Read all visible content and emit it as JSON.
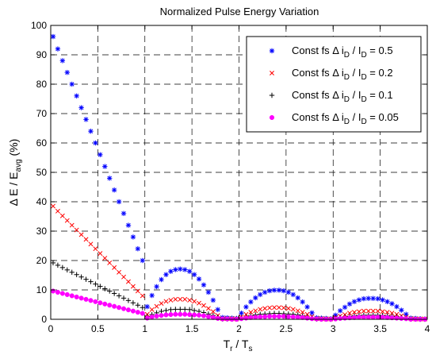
{
  "chart_data": {
    "type": "scatter",
    "title": "Normalized Pulse Energy Variation",
    "xlabel": {
      "base": "T",
      "sub": "r",
      "mid": " / T",
      "sub2": "s"
    },
    "ylabel": {
      "base": "Δ E / E",
      "sub": "avg",
      "tail": " (%)"
    },
    "xlim": [
      0,
      4
    ],
    "ylim": [
      0,
      100
    ],
    "xticks": [
      "0",
      "0.5",
      "1",
      "1.5",
      "2",
      "2.5",
      "3",
      "3.5",
      "4"
    ],
    "yticks": [
      "0",
      "10",
      "20",
      "30",
      "40",
      "50",
      "60",
      "70",
      "80",
      "90",
      "100"
    ],
    "grid": true,
    "legend_position": "top-right",
    "x": [
      0.025,
      0.075,
      0.125,
      0.175,
      0.225,
      0.275,
      0.325,
      0.375,
      0.425,
      0.475,
      0.525,
      0.575,
      0.625,
      0.675,
      0.725,
      0.775,
      0.825,
      0.875,
      0.925,
      0.975,
      1.025,
      1.075,
      1.125,
      1.175,
      1.225,
      1.275,
      1.325,
      1.375,
      1.425,
      1.475,
      1.525,
      1.575,
      1.625,
      1.675,
      1.725,
      1.775,
      1.825,
      1.875,
      1.925,
      1.975,
      2.025,
      2.075,
      2.125,
      2.175,
      2.225,
      2.275,
      2.325,
      2.375,
      2.425,
      2.475,
      2.525,
      2.575,
      2.625,
      2.675,
      2.725,
      2.775,
      2.825,
      2.875,
      2.925,
      2.975,
      3.025,
      3.075,
      3.125,
      3.175,
      3.225,
      3.275,
      3.325,
      3.375,
      3.425,
      3.475,
      3.525,
      3.575,
      3.625,
      3.675,
      3.725,
      3.775,
      3.825,
      3.875,
      3.925,
      3.975
    ],
    "series": [
      {
        "name": "Const fs Δ i_D / I_D = 0.5",
        "legend": {
          "pre": "Const fs Δ i",
          "sub": "D",
          "mid": " / I",
          "sub2": "D",
          "post": " = 0.5"
        },
        "marker": "asterisk",
        "color": "#0000ff",
        "values": [
          96.2,
          92,
          88,
          84,
          80,
          76,
          72,
          68,
          64,
          60,
          56,
          52,
          48,
          44,
          40,
          36,
          32,
          28,
          24,
          20,
          4.3,
          8.1,
          11.1,
          13.5,
          15.2,
          16.3,
          16.9,
          17.1,
          16.9,
          16.3,
          15.2,
          13.7,
          11.7,
          9.2,
          6.5,
          3.3,
          0.6,
          0.5,
          0.4,
          0.3,
          2.1,
          4.2,
          5.9,
          7.3,
          8.4,
          9.2,
          9.7,
          9.9,
          9.9,
          9.7,
          9.2,
          8.4,
          7.3,
          5.9,
          4.2,
          2.2,
          0.5,
          0.4,
          0.3,
          0.2,
          1.4,
          2.9,
          4.1,
          5.2,
          6.0,
          6.6,
          7.0,
          7.1,
          7.1,
          7.0,
          6.6,
          6.0,
          5.3,
          4.3,
          3.1,
          1.7,
          0.4,
          0.3,
          0.2,
          0.1
        ]
      },
      {
        "name": "Const fs Δ i_D / I_D = 0.2",
        "legend": {
          "pre": "Const fs Δ i",
          "sub": "D",
          "mid": " / I",
          "sub2": "D",
          "post": " = 0.2"
        },
        "marker": "x",
        "color": "#ff0000",
        "values": [
          38.5,
          36.8,
          35.2,
          33.6,
          32,
          30.4,
          28.8,
          27.2,
          25.6,
          24,
          22.4,
          20.8,
          19.2,
          17.6,
          16,
          14.4,
          12.8,
          11.2,
          9.6,
          8,
          1.7,
          3.3,
          4.4,
          5.4,
          6.1,
          6.5,
          6.8,
          6.8,
          6.8,
          6.5,
          6.1,
          5.5,
          4.7,
          3.7,
          2.6,
          1.3,
          0.2,
          0.2,
          0.2,
          0.1,
          0.8,
          1.7,
          2.4,
          2.9,
          3.4,
          3.7,
          3.9,
          4.0,
          4.0,
          3.9,
          3.7,
          3.4,
          2.9,
          2.4,
          1.7,
          0.9,
          0.2,
          0.2,
          0.1,
          0.1,
          0.6,
          1.1,
          1.6,
          2.1,
          2.4,
          2.6,
          2.8,
          2.8,
          2.8,
          2.8,
          2.6,
          2.4,
          2.1,
          1.7,
          1.2,
          0.7,
          0.2,
          0.1,
          0.1,
          0.1
        ]
      },
      {
        "name": "Const fs Δ i_D / I_D = 0.1",
        "legend": {
          "pre": "Const fs Δ i",
          "sub": "D",
          "mid": " / I",
          "sub2": "D",
          "post": " = 0.1"
        },
        "marker": "plus",
        "color": "#000000",
        "values": [
          19.2,
          18.4,
          17.6,
          16.8,
          16,
          15.2,
          14.4,
          13.6,
          12.8,
          12,
          11.2,
          10.4,
          9.6,
          8.8,
          8,
          7.2,
          6.4,
          5.6,
          4.8,
          4,
          0.9,
          1.6,
          2.2,
          2.7,
          3.0,
          3.3,
          3.4,
          3.4,
          3.4,
          3.3,
          3.0,
          2.7,
          2.3,
          1.8,
          1.3,
          0.7,
          0.1,
          0.1,
          0.1,
          0.1,
          0.4,
          0.8,
          1.2,
          1.5,
          1.7,
          1.8,
          1.9,
          2.0,
          2.0,
          1.9,
          1.8,
          1.7,
          1.5,
          1.2,
          0.8,
          0.4,
          0.1,
          0.1,
          0.1,
          0.0,
          0.3,
          0.6,
          0.8,
          1.0,
          1.2,
          1.3,
          1.4,
          1.4,
          1.4,
          1.4,
          1.3,
          1.2,
          1.1,
          0.9,
          0.6,
          0.3,
          0.1,
          0.1,
          0.0,
          0.0
        ]
      },
      {
        "name": "Const fs Δ i_D / I_D = 0.05",
        "legend": {
          "pre": "Const fs Δ i",
          "sub": "D",
          "mid": " / I",
          "sub2": "D",
          "post": " = 0.05"
        },
        "marker": "dot",
        "color": "#ff00ff",
        "values": [
          9.6,
          9.2,
          8.8,
          8.4,
          8,
          7.6,
          7.2,
          6.8,
          6.4,
          6,
          5.6,
          5.2,
          4.8,
          4.4,
          4,
          3.6,
          3.2,
          2.8,
          2.4,
          2,
          0.4,
          0.8,
          1.1,
          1.3,
          1.5,
          1.6,
          1.7,
          1.7,
          1.7,
          1.6,
          1.5,
          1.4,
          1.2,
          0.9,
          0.6,
          0.3,
          0.1,
          0.1,
          0.0,
          0.0,
          0.2,
          0.4,
          0.6,
          0.7,
          0.8,
          0.9,
          1.0,
          1.0,
          1.0,
          1.0,
          0.9,
          0.8,
          0.7,
          0.6,
          0.4,
          0.2,
          0.1,
          0.0,
          0.0,
          0.0,
          0.1,
          0.3,
          0.4,
          0.5,
          0.6,
          0.7,
          0.7,
          0.7,
          0.7,
          0.7,
          0.7,
          0.6,
          0.5,
          0.4,
          0.3,
          0.2,
          0.0,
          0.0,
          0.0,
          0.0
        ]
      }
    ]
  }
}
